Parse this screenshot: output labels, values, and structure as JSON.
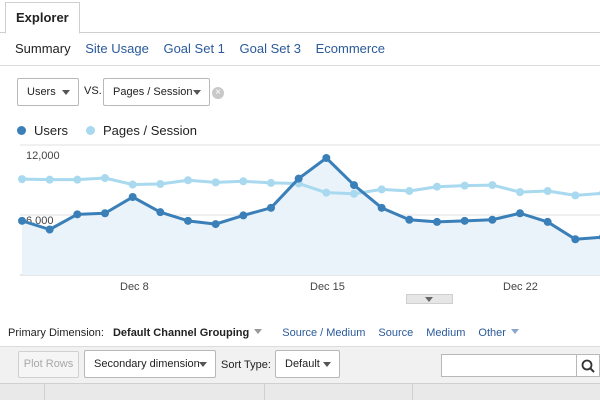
{
  "explorer_tab": "Explorer",
  "subtabs": [
    "Summary",
    "Site Usage",
    "Goal Set 1",
    "Goal Set 3",
    "Ecommerce"
  ],
  "metric_selector": {
    "primary": "Users",
    "vs_label": "VS.",
    "secondary": "Pages / Session"
  },
  "legend": [
    {
      "name": "Users",
      "color": "#3a7fb8"
    },
    {
      "name": "Pages / Session",
      "color": "#a8d9ef"
    }
  ],
  "chart_data": {
    "type": "line",
    "y_tick_labels": [
      "12,000",
      "6,000"
    ],
    "ylim": [
      0,
      12000
    ],
    "x_tick_labels": [
      "Dec 8",
      "Dec 15",
      "Dec 22"
    ],
    "x": [
      "Dec 4",
      "Dec 5",
      "Dec 6",
      "Dec 7",
      "Dec 8",
      "Dec 9",
      "Dec 10",
      "Dec 11",
      "Dec 12",
      "Dec 13",
      "Dec 14",
      "Dec 15",
      "Dec 16",
      "Dec 17",
      "Dec 18",
      "Dec 19",
      "Dec 20",
      "Dec 21",
      "Dec 22",
      "Dec 23",
      "Dec 24",
      "Dec 25"
    ],
    "series": [
      {
        "name": "Users",
        "color": "#3a7fb8",
        "values": [
          5000,
          4200,
          5600,
          5700,
          7200,
          5800,
          5000,
          4700,
          5500,
          6200,
          8900,
          10800,
          8300,
          6200,
          5100,
          4900,
          5000,
          5100,
          5700,
          4900,
          3300,
          3500
        ]
      },
      {
        "name": "Pages / Session",
        "color": "#a8d9ef",
        "values": [
          8850,
          8800,
          8800,
          8950,
          8350,
          8400,
          8750,
          8550,
          8650,
          8500,
          8450,
          7600,
          7500,
          7900,
          7750,
          8150,
          8250,
          8300,
          7650,
          7750,
          7350,
          7550
        ]
      }
    ],
    "grid": true
  },
  "primary_dimension": {
    "label": "Primary Dimension:",
    "selected": "Default Channel Grouping",
    "options": [
      "Source / Medium",
      "Source",
      "Medium"
    ],
    "other": "Other"
  },
  "toolbar": {
    "plot_rows": "Plot Rows",
    "secondary_dimension": "Secondary dimension",
    "sort_type_label": "Sort Type:",
    "sort_type_value": "Default",
    "search_value": ""
  },
  "icons": {
    "remove": "remove-icon",
    "search": "search-icon",
    "caret": "caret-down-icon"
  }
}
